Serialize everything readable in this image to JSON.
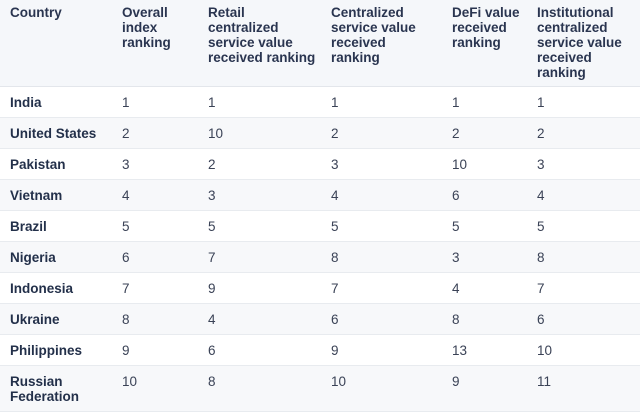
{
  "table": {
    "headers": [
      "Country",
      "Overall index ranking",
      "Retail centralized service value received ranking",
      "Centralized service value received ranking",
      "DeFi value received ranking",
      "Institutional centralized service value received ranking"
    ],
    "rows": [
      {
        "country": "India",
        "overall": "1",
        "retail": "1",
        "centralized": "1",
        "defi": "1",
        "institutional": "1"
      },
      {
        "country": "United States",
        "overall": "2",
        "retail": "10",
        "centralized": "2",
        "defi": "2",
        "institutional": "2"
      },
      {
        "country": "Pakistan",
        "overall": "3",
        "retail": "2",
        "centralized": "3",
        "defi": "10",
        "institutional": "3"
      },
      {
        "country": "Vietnam",
        "overall": "4",
        "retail": "3",
        "centralized": "4",
        "defi": "6",
        "institutional": "4"
      },
      {
        "country": "Brazil",
        "overall": "5",
        "retail": "5",
        "centralized": "5",
        "defi": "5",
        "institutional": "5"
      },
      {
        "country": "Nigeria",
        "overall": "6",
        "retail": "7",
        "centralized": "8",
        "defi": "3",
        "institutional": "8"
      },
      {
        "country": "Indonesia",
        "overall": "7",
        "retail": "9",
        "centralized": "7",
        "defi": "4",
        "institutional": "7"
      },
      {
        "country": "Ukraine",
        "overall": "8",
        "retail": "4",
        "centralized": "6",
        "defi": "8",
        "institutional": "6"
      },
      {
        "country": "Philippines",
        "overall": "9",
        "retail": "6",
        "centralized": "9",
        "defi": "13",
        "institutional": "10"
      },
      {
        "country": "Russian Federation",
        "overall": "10",
        "retail": "8",
        "centralized": "10",
        "defi": "9",
        "institutional": "11"
      }
    ]
  }
}
